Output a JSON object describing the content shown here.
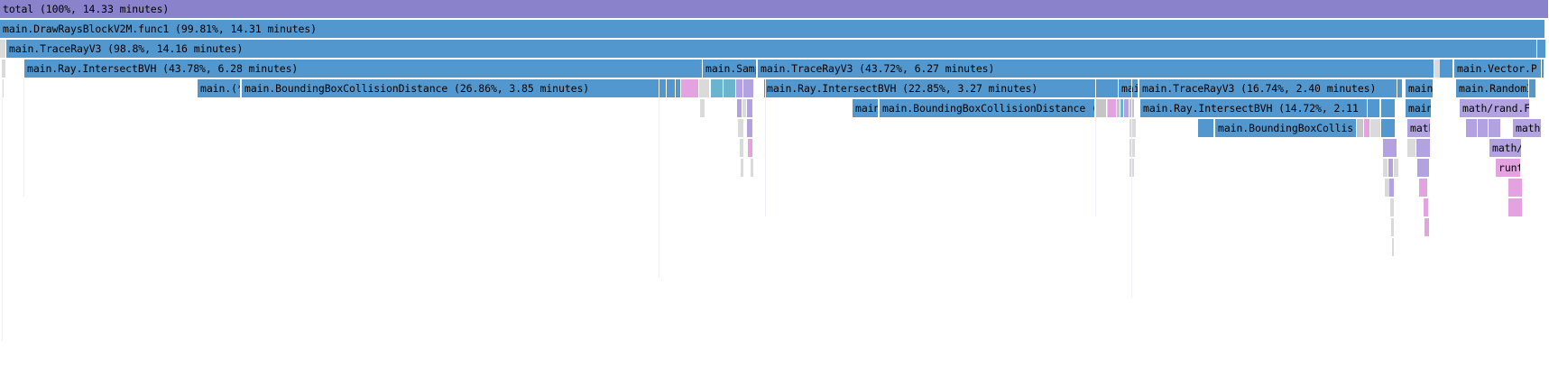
{
  "flamegraph": {
    "colors": {
      "total": "#8a82ca",
      "main": "#5397cf",
      "math": "#b2a3e0",
      "runtime": "#e3a2e0",
      "cyan": "#6ab5cd",
      "gray": "#c5c5c5",
      "lightgray": "#dadada"
    },
    "frames": [
      {
        "label": "total (100%, 14.33 minutes)",
        "kind": "total"
      },
      {
        "label": "main.DrawRaysBlockV2M.func1 (99.81%, 14.31 minutes)",
        "kind": "main"
      },
      {
        "label": "main.TraceRayV3 (98.8%, 14.16 minutes)",
        "kind": "main"
      },
      {
        "label": "main.Ray.IntersectBVH (43.78%, 6.28 minutes)",
        "kind": "main"
      },
      {
        "label": "main.Samp",
        "kind": "main"
      },
      {
        "label": "main.TraceRayV3 (43.72%, 6.27 minutes)",
        "kind": "main"
      },
      {
        "label": "main.Vector.P",
        "kind": "main"
      },
      {
        "label": "main.(*",
        "kind": "main"
      },
      {
        "label": "main.BoundingBoxCollisionDistance (26.86%, 3.85 minutes)",
        "kind": "main"
      },
      {
        "label": "main.Ray.IntersectBVH (22.85%, 3.27 minutes)",
        "kind": "main"
      },
      {
        "label": "mai",
        "kind": "main"
      },
      {
        "label": "main.TraceRayV3 (16.74%, 2.40 minutes)",
        "kind": "main"
      },
      {
        "label": "main",
        "kind": "main"
      },
      {
        "label": "main.RandomI",
        "kind": "main"
      },
      {
        "label": "main",
        "kind": "main"
      },
      {
        "label": "main.BoundingBoxCollisionDistance (",
        "kind": "main"
      },
      {
        "label": "main.Ray.IntersectBVH (14.72%, 2.11",
        "kind": "main"
      },
      {
        "label": "main",
        "kind": "main"
      },
      {
        "label": "math/rand.F",
        "kind": "math"
      },
      {
        "label": "main.BoundingBoxCollis",
        "kind": "main"
      },
      {
        "label": "math",
        "kind": "math"
      },
      {
        "label": "math/r",
        "kind": "math"
      },
      {
        "label": "math/",
        "kind": "math"
      },
      {
        "label": "runt",
        "kind": "runtime"
      }
    ]
  }
}
